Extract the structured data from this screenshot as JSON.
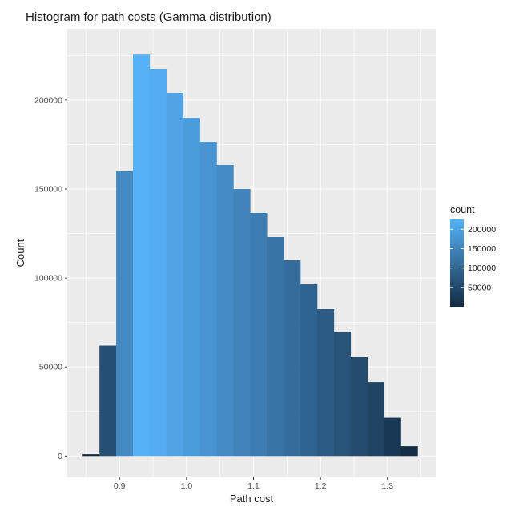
{
  "chart_data": {
    "type": "histogram",
    "title": "Histogram for path costs (Gamma distribution)",
    "xlabel": "Path cost",
    "ylabel": "Count",
    "x_ticks": [
      0.9,
      1.0,
      1.1,
      1.2,
      1.3
    ],
    "x_tick_labels": [
      "0.9",
      "1.0",
      "1.1",
      "1.2",
      "1.3"
    ],
    "y_ticks": [
      0,
      50000,
      100000,
      150000,
      200000
    ],
    "y_tick_labels": [
      "0",
      "50000",
      "100000",
      "150000",
      "200000"
    ],
    "xlim": [
      0.822,
      1.372
    ],
    "ylim": [
      -12000,
      240000
    ],
    "bins": [
      {
        "x0": 0.845,
        "x1": 0.87,
        "count": 1000
      },
      {
        "x0": 0.87,
        "x1": 0.895,
        "count": 62000
      },
      {
        "x0": 0.895,
        "x1": 0.92,
        "count": 160000
      },
      {
        "x0": 0.92,
        "x1": 0.945,
        "count": 225500
      },
      {
        "x0": 0.945,
        "x1": 0.97,
        "count": 217500
      },
      {
        "x0": 0.97,
        "x1": 0.995,
        "count": 204000
      },
      {
        "x0": 0.995,
        "x1": 1.02,
        "count": 190000
      },
      {
        "x0": 1.02,
        "x1": 1.045,
        "count": 176500
      },
      {
        "x0": 1.045,
        "x1": 1.07,
        "count": 163500
      },
      {
        "x0": 1.07,
        "x1": 1.095,
        "count": 150000
      },
      {
        "x0": 1.095,
        "x1": 1.12,
        "count": 136500
      },
      {
        "x0": 1.12,
        "x1": 1.145,
        "count": 123000
      },
      {
        "x0": 1.145,
        "x1": 1.17,
        "count": 110000
      },
      {
        "x0": 1.17,
        "x1": 1.195,
        "count": 96500
      },
      {
        "x0": 1.195,
        "x1": 1.22,
        "count": 82500
      },
      {
        "x0": 1.22,
        "x1": 1.245,
        "count": 69500
      },
      {
        "x0": 1.245,
        "x1": 1.27,
        "count": 55500
      },
      {
        "x0": 1.27,
        "x1": 1.295,
        "count": 41500
      },
      {
        "x0": 1.295,
        "x1": 1.32,
        "count": 21500
      },
      {
        "x0": 1.32,
        "x1": 1.345,
        "count": 5500
      }
    ],
    "fill_scale": {
      "low_color": "#132B43",
      "high_color": "#56B1F7",
      "min": 0,
      "max": 225500
    },
    "legend": {
      "title": "count",
      "position": "right",
      "breaks": [
        200000,
        150000,
        100000,
        50000
      ],
      "labels": [
        "200000",
        "150000",
        "100000",
        "50000"
      ]
    },
    "grid": true,
    "panel_background": "#EBEBEB",
    "grid_color": "#FFFFFF"
  }
}
